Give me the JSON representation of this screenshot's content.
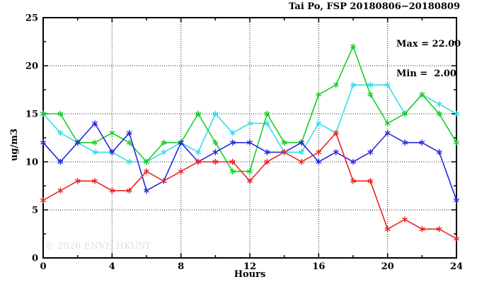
{
  "header": {
    "title": "Tai Po, FSP 20180806−20180809"
  },
  "annotation": {
    "max_label": "Max = 22.00",
    "min_label": "Min =  2.00"
  },
  "watermark": "© 2026 ENVF, HKUST",
  "chart_data": {
    "type": "line",
    "title": "Tai Po, FSP 20180806−20180809",
    "xlabel": "Hours",
    "ylabel": "ug/m3",
    "xlim": [
      0,
      24
    ],
    "ylim": [
      0,
      25
    ],
    "x_major_ticks": [
      0,
      4,
      8,
      12,
      16,
      20,
      24
    ],
    "x_minor_ticks": [
      2,
      6,
      10,
      14,
      18,
      22
    ],
    "y_major_ticks": [
      0,
      5,
      10,
      15,
      20,
      25
    ],
    "y_minor_ticks": [
      2.5,
      7.5,
      12.5,
      17.5,
      22.5
    ],
    "x_gridlines": [
      4,
      8,
      12,
      16,
      20
    ],
    "y_gridlines": [
      5,
      10,
      15,
      20
    ],
    "grid": "dotted",
    "legend_position": "none",
    "marker": "asterisk",
    "stats": {
      "max": 22.0,
      "min": 2.0
    },
    "x": [
      0,
      1,
      2,
      3,
      4,
      5,
      6,
      7,
      8,
      9,
      10,
      11,
      12,
      13,
      14,
      15,
      16,
      17,
      18,
      19,
      20,
      21,
      22,
      23,
      24
    ],
    "series": [
      {
        "name": "series-cyan",
        "color": "#38dce8",
        "values": [
          15,
          13,
          12,
          11,
          11,
          10,
          10,
          11,
          12,
          11,
          15,
          13,
          14,
          14,
          11,
          11,
          14,
          13,
          18,
          18,
          18,
          15,
          17,
          16,
          15
        ]
      },
      {
        "name": "series-green",
        "color": "#17cf2b",
        "values": [
          15,
          15,
          12,
          12,
          13,
          12,
          10,
          12,
          12,
          15,
          12,
          9,
          9,
          15,
          12,
          12,
          17,
          18,
          22,
          17,
          14,
          15,
          17,
          15,
          12
        ]
      },
      {
        "name": "series-blue",
        "color": "#2727e0",
        "values": [
          12,
          10,
          12,
          14,
          11,
          13,
          7,
          8,
          12,
          10,
          11,
          12,
          12,
          11,
          11,
          12,
          10,
          11,
          10,
          11,
          13,
          12,
          12,
          11,
          6
        ]
      },
      {
        "name": "series-red",
        "color": "#ec2424",
        "values": [
          6,
          7,
          8,
          8,
          7,
          7,
          9,
          8,
          9,
          10,
          10,
          10,
          8,
          10,
          11,
          10,
          11,
          13,
          8,
          8,
          3,
          4,
          3,
          3,
          2
        ]
      }
    ]
  }
}
